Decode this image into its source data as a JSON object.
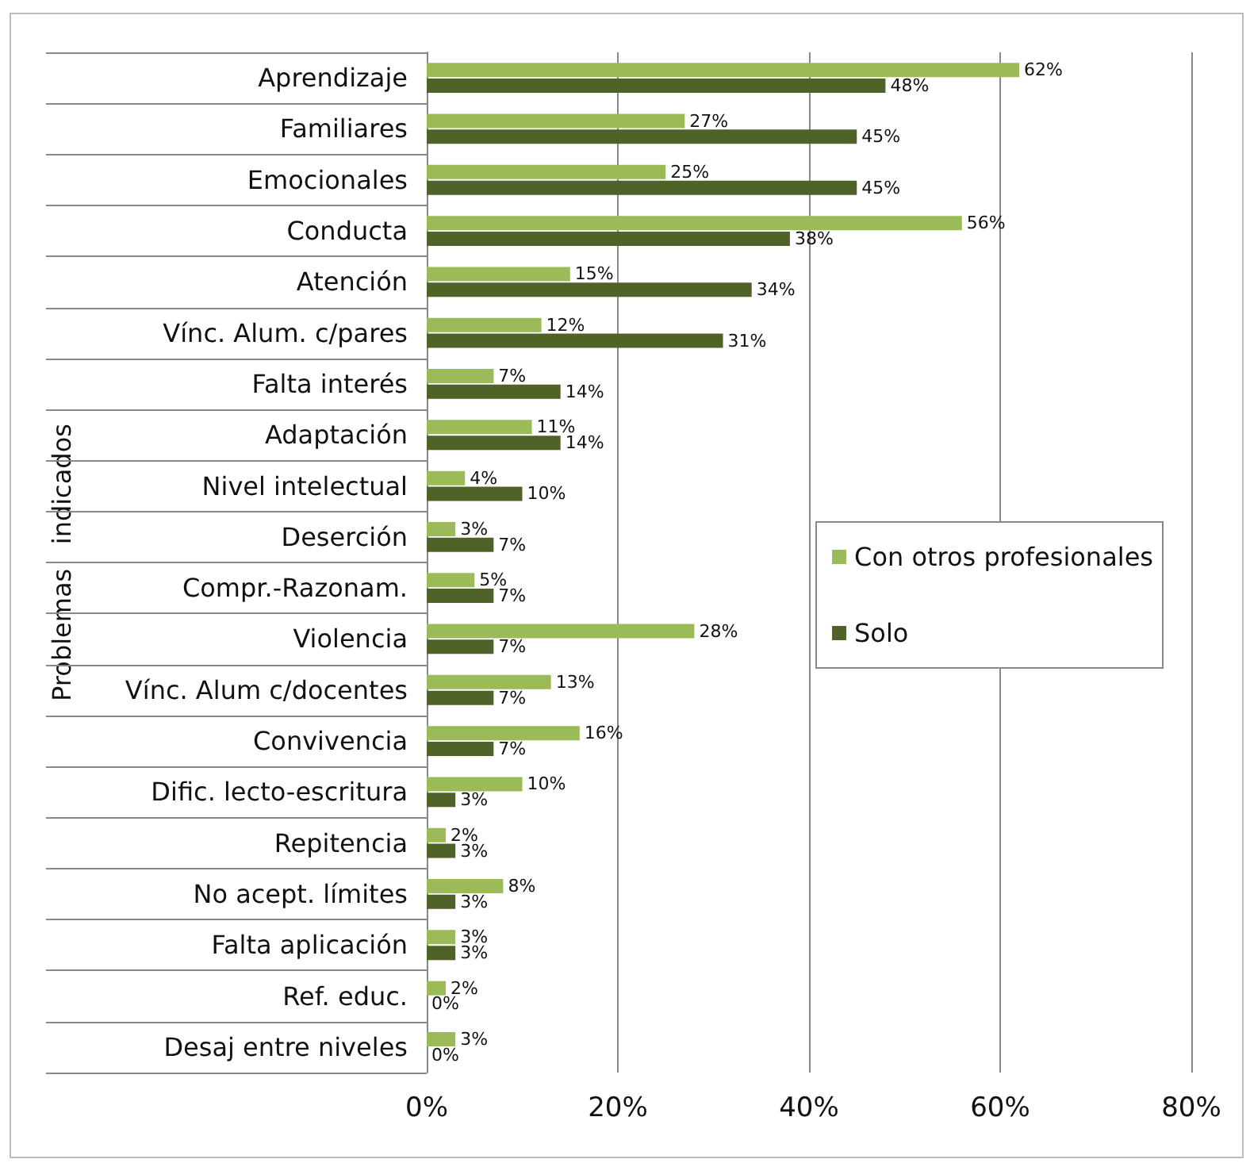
{
  "chart_data": {
    "type": "bar",
    "orientation": "horizontal",
    "ylabel": "Problemas   indicados",
    "categories": [
      "Aprendizaje",
      "Familiares",
      "Emocionales",
      "Conducta",
      "Atención",
      "Vínc. Alum. c/pares",
      "Falta interés",
      "Adaptación",
      "Nivel intelectual",
      "Deserción",
      "Compr.-Razonam.",
      "Violencia",
      "Vínc. Alum c/docentes",
      "Convivencia",
      "Dific. lecto-escritura",
      "Repitencia",
      "No acept. límites",
      "Falta aplicación",
      "Ref. educ.",
      "Desaj entre niveles"
    ],
    "series": [
      {
        "name": "Con otros profesionales",
        "color": "#9bbb59",
        "values": [
          62,
          27,
          25,
          56,
          15,
          12,
          7,
          11,
          4,
          3,
          5,
          28,
          13,
          16,
          10,
          2,
          8,
          3,
          2,
          3
        ],
        "value_labels": [
          "62%",
          "27%",
          "25%",
          "56%",
          "15%",
          "12%",
          "7%",
          "11%",
          "4%",
          "3%",
          "5%",
          "28%",
          "13%",
          "16%",
          "10%",
          "2%",
          "8%",
          "3%",
          "2%",
          "3%"
        ]
      },
      {
        "name": "Solo",
        "color": "#4f6228",
        "values": [
          48,
          45,
          45,
          38,
          34,
          31,
          14,
          14,
          10,
          7,
          7,
          7,
          7,
          7,
          3,
          3,
          3,
          3,
          0,
          0
        ],
        "value_labels": [
          "48%",
          "45%",
          "45%",
          "38%",
          "34%",
          "31%",
          "14%",
          "14%",
          "10%",
          "7%",
          "7%",
          "7%",
          "7%",
          "7%",
          "3%",
          "3%",
          "3%",
          "3%",
          "0%",
          "0%"
        ]
      }
    ],
    "xlim": [
      0,
      80
    ],
    "xticks": [
      {
        "value": 0,
        "label": "0%"
      },
      {
        "value": 20,
        "label": "20%"
      },
      {
        "value": 40,
        "label": "40%"
      },
      {
        "value": 60,
        "label": "60%"
      },
      {
        "value": 80,
        "label": "80%"
      }
    ],
    "grid": "x",
    "legend": "right"
  }
}
